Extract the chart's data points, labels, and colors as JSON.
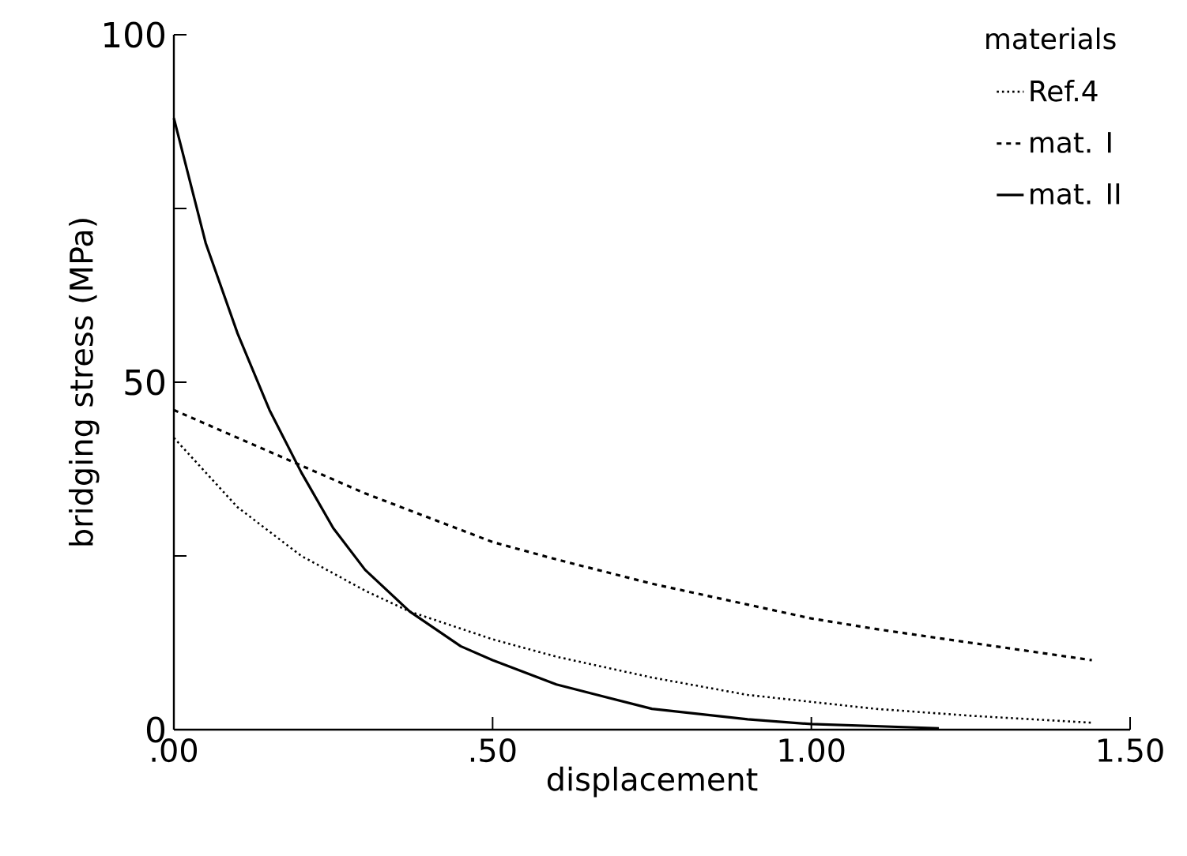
{
  "chart_data": {
    "type": "line",
    "xlabel": "displacement",
    "ylabel": "bridging stress  (MPa)",
    "legend_title": "materials",
    "legend": "top right",
    "xlim": [
      0,
      1.5
    ],
    "ylim": [
      0,
      100
    ],
    "xticks": [
      {
        "value": 0,
        "label": ".00"
      },
      {
        "value": 0.5,
        "label": ".50"
      },
      {
        "value": 1.0,
        "label": "1.00"
      },
      {
        "value": 1.5,
        "label": "1.50"
      }
    ],
    "yticks": [
      0,
      {
        "value": 25,
        "label": null
      },
      50,
      {
        "value": 75,
        "label": null
      },
      100
    ],
    "grid": false,
    "marker": "none",
    "series": [
      {
        "name": "Ref.4",
        "color": "#000000",
        "line_style": "dotted",
        "x": [
          0,
          0.05,
          0.1,
          0.2,
          0.3,
          0.37,
          0.5,
          0.6,
          0.75,
          0.9,
          1.0,
          1.1,
          1.25,
          1.44
        ],
        "values": [
          42,
          37,
          32,
          25,
          20,
          17,
          13,
          10.5,
          7.5,
          5,
          4,
          3,
          2,
          1
        ]
      },
      {
        "name": "mat. I",
        "color": "#000000",
        "line_style": "dashed",
        "x": [
          0,
          0.1,
          0.2,
          0.3,
          0.4,
          0.5,
          0.6,
          0.75,
          0.9,
          1.0,
          1.1,
          1.25,
          1.44
        ],
        "values": [
          46,
          42,
          38,
          34,
          30.5,
          27,
          24.5,
          21,
          18,
          16,
          14.5,
          12.5,
          10
        ]
      },
      {
        "name": "mat. II",
        "color": "#000000",
        "line_style": "solid",
        "x": [
          0,
          0.05,
          0.1,
          0.15,
          0.2,
          0.25,
          0.3,
          0.37,
          0.45,
          0.5,
          0.6,
          0.75,
          0.9,
          1.0,
          1.2
        ],
        "values": [
          88,
          70,
          57,
          46,
          37,
          29,
          23,
          17,
          12,
          10,
          6.5,
          3,
          1.5,
          0.8,
          0.2
        ]
      }
    ]
  }
}
